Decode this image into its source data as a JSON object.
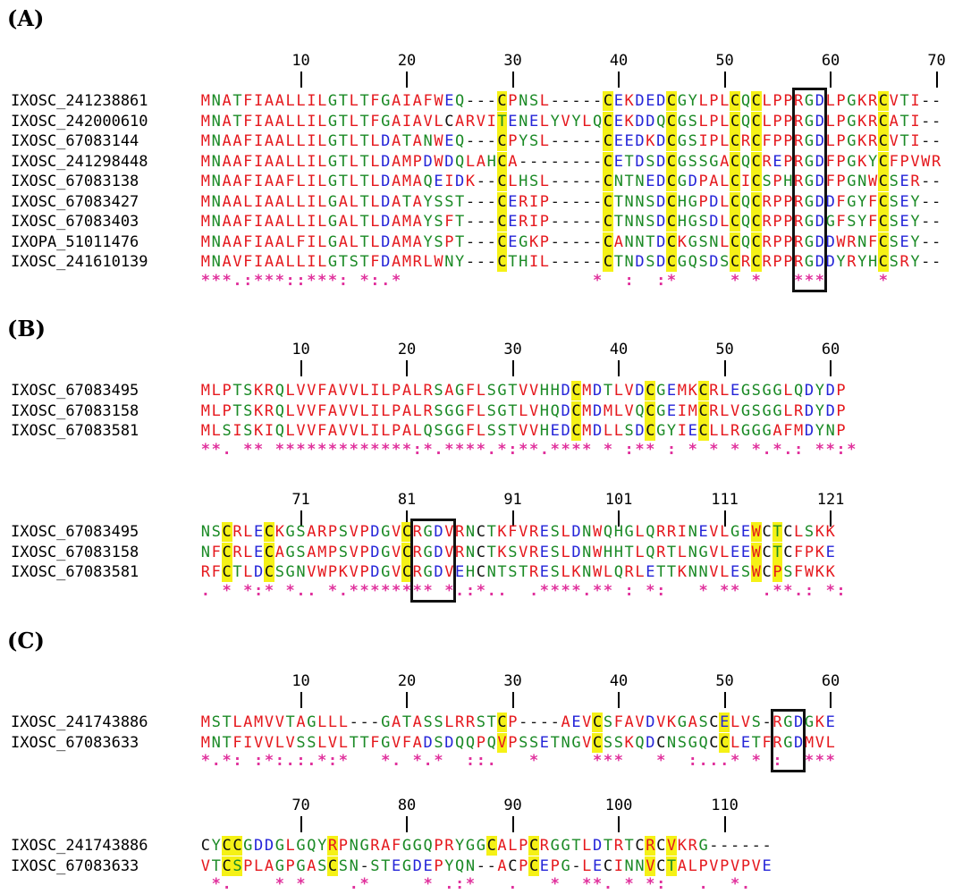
{
  "panels": [
    {
      "label": "(A)",
      "blocks": [
        {
          "ticks": [
            "10",
            "20",
            "30",
            "40",
            "50",
            "60",
            "70"
          ],
          "tick_columns": [
            10,
            20,
            30,
            40,
            50,
            60,
            70
          ],
          "sequences": [
            {
              "name": "IXOSC_241238861",
              "seq": "MNATFIAALLILGTLTFGAIAFWEQ---CPNSL-----CEKDEDCGYLPLCQCLPPRGDLPGKRCVTI--"
            },
            {
              "name": "IXOSC_242000610",
              "seq": "MNATFIAALLILGTLTFGAIAVLCARVITENELYVYLQCEKDDQCGSLPLCQCLPPRGDLPGKRCATI--"
            },
            {
              "name": "IXOSC_67083144",
              "seq": "MNAAFIAALLILGTLTLDATANWEQ---CPYSL-----CEEDKDCGSIPLCRCFPPRGDLPGKRCVTI--"
            },
            {
              "name": "IXOSC_241298448",
              "seq": "MNAAFIAALLILGTLTLDAMPDWDQLAHCA--------CETDSDCGSSGACQCREPRGDFPGKYCFPVWR"
            },
            {
              "name": "IXOSC_67083138",
              "seq": "MNAAFIAAFLILGTLTLDAMAQEIDK--CLHSL-----CNTNEDCGDPALCICSPHRGDFPGNWCSER--"
            },
            {
              "name": "IXOSC_67083427",
              "seq": "MNAALIAALLILGALTLDATAYSST---CERIP-----CTNNSDCHGPDLCQCRPPRGDDFGYFCSEY--"
            },
            {
              "name": "IXOSC_67083403",
              "seq": "MNAAFIAALLILGALTLDAMAYSFT---CERIP-----CTNNSDCHGSDLCQCRPPRGDGFSYFCSEY--"
            },
            {
              "name": "IXOPA_51011476",
              "seq": "MNAAFIAALFILGALTLDAMAYSPT---CEGKP-----CANNTDCKGSNLCQCRPPRGDDWRNFCSEY--"
            },
            {
              "name": "IXOSC_241610139",
              "seq": "MNAVFIAALLILGTSTFDAMRLWNY---CTHIL-----CTNDSDCGQSDSCRCRPPRGDDYRYHCSRY--"
            }
          ],
          "consensus": "***.:***::***: *:.*                  *  :  :*     * *   ***     *     ",
          "highlight_columns": [
            29,
            39,
            45,
            51,
            53,
            65
          ],
          "box_columns": [
            57,
            59
          ]
        }
      ]
    },
    {
      "label": "(B)",
      "blocks": [
        {
          "ticks": [
            "10",
            "20",
            "30",
            "40",
            "50",
            "60"
          ],
          "tick_columns": [
            10,
            20,
            30,
            40,
            50,
            60
          ],
          "sequences": [
            {
              "name": "IXOSC_67083495",
              "seq": "MLPTSKRQLVVFAVVLILPALRSAGFLSGTVVHHDCMDTLVDCGEMKCRLEGSGGLQDYDP"
            },
            {
              "name": "IXOSC_67083158",
              "seq": "MLPTSKRQLVVFAVVLILPALRSGGFLSGTLVHQDCMDMLVQCGEIMCRLVGSGGLRDYDP"
            },
            {
              "name": "IXOSC_67083581",
              "seq": "MLSISKIQLVVFAVVLILPALQSGGFLSSTVVHEDCMDLLSDCGYIECLLRGGGAFMDYNP"
            }
          ],
          "consensus": "**. ** *************:*.****.*:**.**** * :** : * * * *.*.: **:*",
          "highlight_columns": [
            36,
            43,
            48
          ],
          "box_columns": []
        },
        {
          "ticks": [
            "71",
            "81",
            "91",
            "101",
            "111",
            "121"
          ],
          "tick_columns": [
            71,
            81,
            91,
            101,
            111,
            121
          ],
          "start_column": 62,
          "sequences": [
            {
              "name": "IXOSC_67083495",
              "seq": "NSCRLECKGSARPSVPDGVCRGDVRNCTKFVRESLDNWQHGLQRRINEVLGEWCTCLSKK"
            },
            {
              "name": "IXOSC_67083158",
              "seq": "NFCRLECAGSAMPSVPDGVCRGDVRNCTKSVRESLDNWHHTLQRTLNGVLEEWCTCFPKE"
            },
            {
              "name": "IXOSC_67083581",
              "seq": "RFCTLDCSGNVWPKVPDGVCRGDVEHCNTSTRESLKNWLQRLETTKNNVLESWCPSFWKK"
            }
          ],
          "consensus": ". * *:* *.. *.******** *.:*..  .****.** : *:   * **  .**.: *:",
          "highlight_columns": [
            64,
            68,
            81,
            114,
            116
          ],
          "box_columns": [
            82,
            85
          ]
        }
      ]
    },
    {
      "label": "(C)",
      "blocks": [
        {
          "ticks": [
            "10",
            "20",
            "30",
            "40",
            "50",
            "60"
          ],
          "tick_columns": [
            10,
            20,
            30,
            40,
            50,
            60
          ],
          "sequences": [
            {
              "name": "IXOSC_241743886",
              "seq": "MSTLAMVVTAGLLL---GATASSLRRSTCP----AEVCSFAVDVKGASCELVS-RGDGKE"
            },
            {
              "name": "IXOSC_67083633",
              "seq": "MNTFIVVLVSSLVLTTFGVFADSDQQPQVPSSETNGVCSSKQDCNSGQCCLETFRGDMVL"
            }
          ],
          "consensus": "*.*: :*:.:.*:*   *. *.*  ::.   *     ***   *  :...* * :  ***   ",
          "highlight_columns": [
            29,
            38,
            50
          ],
          "box_columns": [
            55,
            57
          ]
        },
        {
          "ticks": [
            "70",
            "80",
            "90",
            "100",
            "110"
          ],
          "tick_columns": [
            70,
            80,
            90,
            100,
            110
          ],
          "start_column": 61,
          "sequences": [
            {
              "name": "IXOSC_241743886",
              "seq": "CYCCGDDGLGQYRPNGRAFGGQPRYGGCALPCRGGTLDTRTCRCVKRG------"
            },
            {
              "name": "IXOSC_67083633",
              "seq": "VTCSPLAGPGASCSN-STEGDEPYQN--ACPCEPG-LECINNVCTALPVPVPVE"
            }
          ],
          "consensus": " *.    * *    .*     * .:*   .   *  **. * *:   .  *.   ",
          "highlight_columns": [
            63,
            64,
            73,
            88,
            92,
            103,
            105
          ],
          "box_columns": []
        }
      ]
    }
  ]
}
